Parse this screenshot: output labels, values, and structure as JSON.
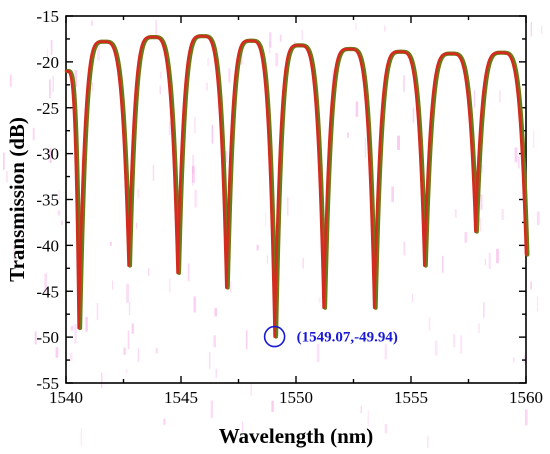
{
  "chart_data": {
    "type": "line",
    "xlabel": "Wavelength (nm)",
    "ylabel": "Transmission (dB)",
    "xlim": [
      1540,
      1560
    ],
    "ylim": [
      -55,
      -15
    ],
    "x_ticks": [
      1540,
      1545,
      1550,
      1555,
      1560
    ],
    "y_ticks": [
      -55,
      -50,
      -45,
      -40,
      -35,
      -30,
      -25,
      -20,
      -15
    ],
    "grid": false,
    "legend": "none",
    "colors": {
      "line": "#d42b1e",
      "line_shadow": "#6b7a16",
      "annotation": "#1a1ad6",
      "noise": "#f5a8e6"
    },
    "dips": [
      {
        "x": 1540.55,
        "y": -49.0
      },
      {
        "x": 1542.72,
        "y": -42.2
      },
      {
        "x": 1544.85,
        "y": -43.0
      },
      {
        "x": 1546.97,
        "y": -44.6
      },
      {
        "x": 1549.07,
        "y": -49.94
      },
      {
        "x": 1551.2,
        "y": -46.8
      },
      {
        "x": 1553.4,
        "y": -46.8
      },
      {
        "x": 1555.58,
        "y": -42.2
      },
      {
        "x": 1557.8,
        "y": -38.5
      }
    ],
    "peaks": [
      {
        "x": 1541.6,
        "y": -17.8
      },
      {
        "x": 1543.75,
        "y": -17.3
      },
      {
        "x": 1545.9,
        "y": -17.2
      },
      {
        "x": 1548.0,
        "y": -17.7
      },
      {
        "x": 1550.1,
        "y": -18.2
      },
      {
        "x": 1552.3,
        "y": -18.6
      },
      {
        "x": 1554.5,
        "y": -18.9
      },
      {
        "x": 1556.7,
        "y": -19.1
      },
      {
        "x": 1558.9,
        "y": -19.0
      }
    ],
    "start": {
      "x": 1540.0,
      "y": -21.0
    },
    "end": {
      "x": 1560.0,
      "y": -41.0
    },
    "annotation": {
      "x": 1549.07,
      "y": -49.94,
      "text": "(1549.07,-49.94)"
    }
  }
}
